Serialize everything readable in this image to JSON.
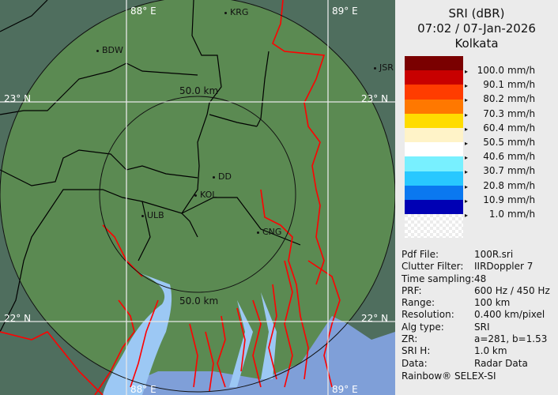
{
  "header": {
    "product": "SRI (dBR)",
    "datetime": "07:02 / 07-Jan-2026",
    "site": "Kolkata"
  },
  "legend": {
    "colors": [
      "#7a0000",
      "#c80000",
      "#ff3c00",
      "#ff7800",
      "#ffdc00",
      "#fff3c8",
      "#ffffff",
      "#78f0ff",
      "#28c8ff",
      "#0a78f0",
      "#0000b4"
    ],
    "ticks": [
      "100.0",
      "90.1",
      "80.2",
      "70.3",
      "60.4",
      "50.5",
      "40.6",
      "30.7",
      "20.8",
      "10.9",
      "1.0"
    ],
    "unit": "mm/h"
  },
  "info": [
    {
      "key": "Pdf File:",
      "value": "100R.sri"
    },
    {
      "key": "Clutter Filter:",
      "value": "IIRDoppler 7"
    },
    {
      "key": "Time sampling:",
      "value": "48"
    },
    {
      "key": "PRF:",
      "value": "600 Hz / 450 Hz"
    },
    {
      "key": "Range:",
      "value": "100 km"
    },
    {
      "key": "Resolution:",
      "value": "0.400 km/pixel"
    },
    {
      "key": "Alg type:",
      "value": "SRI"
    },
    {
      "key": "ZR:",
      "value": "a=281, b=1.53"
    },
    {
      "key": "SRI H:",
      "value": "1.0 km"
    },
    {
      "key": "Data:",
      "value": "Radar Data"
    }
  ],
  "credit": "Rainbow® SELEX-SI",
  "map": {
    "grid": {
      "lon_top_left": "88° E",
      "lon_top_right": "89° E",
      "lon_bottom_left": "88° E",
      "lon_bottom_right": "89° E",
      "lat_upper_left": "23° N",
      "lat_upper_right": "23° N",
      "lat_lower_left": "22° N",
      "lat_lower_right": "22° N"
    },
    "range_rings": {
      "inner_top": "50.0 km",
      "inner_bottom": "50.0 km"
    },
    "cities": [
      "BDW",
      "KRG",
      "JSR",
      "DD",
      "KOL",
      "ULB",
      "CNG"
    ],
    "colors": {
      "land_in_range": "#5b8a52",
      "land_out_range": "#4f6e5e",
      "water": "#9cc8f4",
      "sea": "#7f9fd8",
      "rivers": "#ff0000",
      "borders": "#000000"
    }
  }
}
